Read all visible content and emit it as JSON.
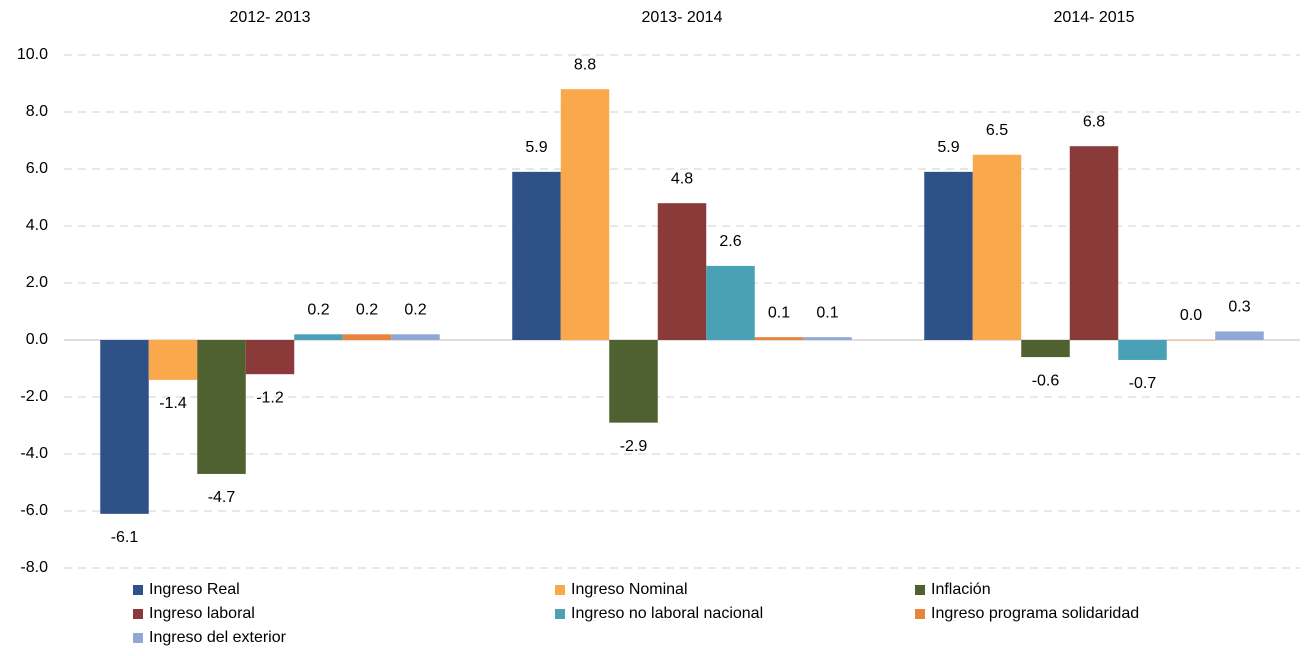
{
  "chart_data": {
    "type": "bar",
    "categories": [
      "2012- 2013",
      "2013- 2014",
      "2014- 2015"
    ],
    "series": [
      {
        "name": "Ingreso Real",
        "color": "#2e5188",
        "values": [
          -6.1,
          5.9,
          5.9
        ],
        "value_labels": [
          "-6.1",
          "5.9",
          "5.9"
        ]
      },
      {
        "name": "Ingreso Nominal",
        "color": "#f9a94b",
        "values": [
          -1.4,
          8.8,
          6.5
        ],
        "value_labels": [
          "-1.4",
          "8.8",
          "6.5"
        ]
      },
      {
        "name": "Inflación",
        "color": "#4f6130",
        "values": [
          -4.7,
          -2.9,
          -0.6
        ],
        "value_labels": [
          "-4.7",
          "-2.9",
          "-0.6"
        ]
      },
      {
        "name": "Ingreso laboral",
        "color": "#8b3a3a",
        "values": [
          -1.2,
          4.8,
          6.8
        ],
        "value_labels": [
          "-1.2",
          "4.8",
          "6.8"
        ]
      },
      {
        "name": "Ingreso no laboral nacional",
        "color": "#4aa0b5",
        "values": [
          0.2,
          2.6,
          -0.7
        ],
        "value_labels": [
          "0.2",
          "2.6",
          "-0.7"
        ]
      },
      {
        "name": "Ingreso programa solidaridad",
        "color": "#e8843d",
        "values": [
          0.2,
          0.1,
          0.0
        ],
        "value_labels": [
          "0.2",
          "0.1",
          "0.0"
        ]
      },
      {
        "name": "Ingreso del exterior",
        "color": "#8fa8d6",
        "values": [
          0.2,
          0.1,
          0.3
        ],
        "value_labels": [
          "0.2",
          "0.1",
          "0.3"
        ]
      }
    ],
    "ylim": [
      -8,
      10
    ],
    "yticks": [
      {
        "value": -8,
        "label": "-8.0"
      },
      {
        "value": -6,
        "label": "-6.0"
      },
      {
        "value": -4,
        "label": "-4.0"
      },
      {
        "value": -2,
        "label": "-2.0"
      },
      {
        "value": 0,
        "label": "0.0"
      },
      {
        "value": 2,
        "label": "2.0"
      },
      {
        "value": 4,
        "label": "4.0"
      },
      {
        "value": 6,
        "label": "6.0"
      },
      {
        "value": 8,
        "label": "8.0"
      },
      {
        "value": 10,
        "label": "10.0"
      }
    ],
    "grid": true,
    "legend": "bottom"
  }
}
